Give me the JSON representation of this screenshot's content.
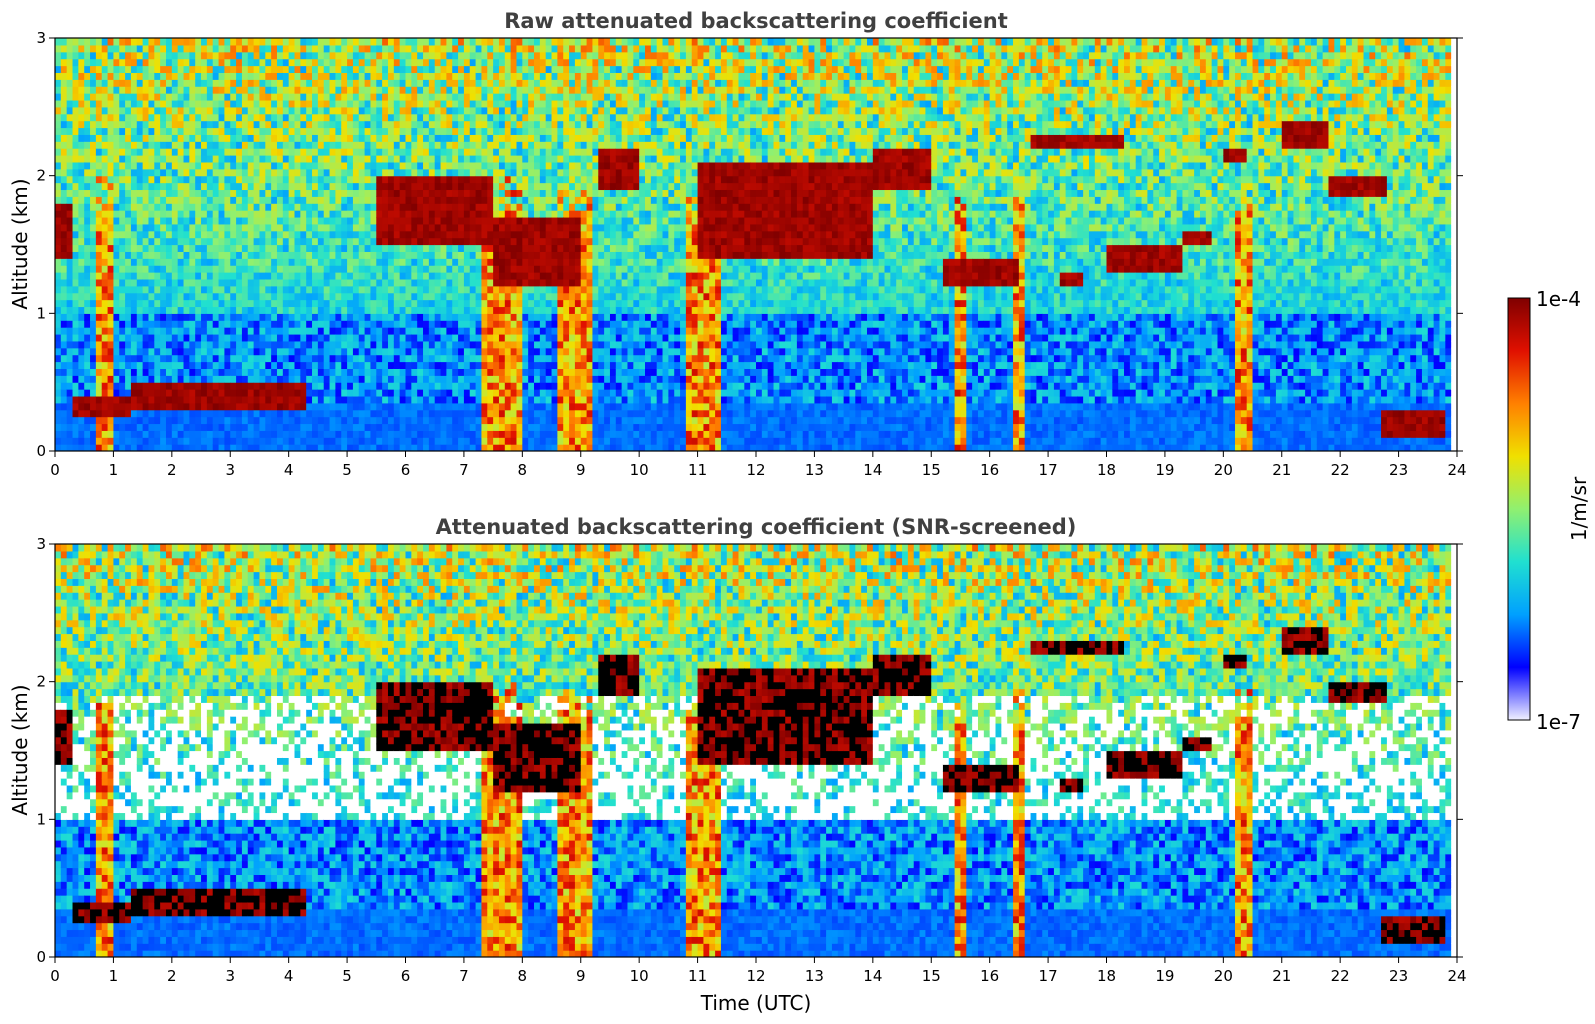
{
  "chart_data": {
    "type": "heatmap",
    "panels": [
      {
        "id": "raw",
        "title": "Raw attenuated backscattering coefficient",
        "xlabel": "",
        "ylabel": "Altitude (km)",
        "xlim": [
          0,
          24
        ],
        "ylim": [
          0,
          3
        ],
        "xticks": [
          "0",
          "1",
          "2",
          "3",
          "4",
          "5",
          "6",
          "7",
          "8",
          "9",
          "10",
          "11",
          "12",
          "13",
          "14",
          "15",
          "16",
          "17",
          "18",
          "19",
          "20",
          "21",
          "22",
          "23",
          "24"
        ],
        "yticks": [
          "0",
          "1",
          "2",
          "3"
        ],
        "screened": false
      },
      {
        "id": "snr",
        "title": "Attenuated backscattering coefficient (SNR-screened)",
        "xlabel": "Time (UTC)",
        "ylabel": "Altitude (km)",
        "xlim": [
          0,
          24
        ],
        "ylim": [
          0,
          3
        ],
        "xticks": [
          "0",
          "1",
          "2",
          "3",
          "4",
          "5",
          "6",
          "7",
          "8",
          "9",
          "10",
          "11",
          "12",
          "13",
          "14",
          "15",
          "16",
          "17",
          "18",
          "19",
          "20",
          "21",
          "22",
          "23",
          "24"
        ],
        "yticks": [
          "0",
          "1",
          "2",
          "3"
        ],
        "screened": true
      }
    ],
    "colorbar": {
      "label": "1/m/sr",
      "max_label": "1e-4",
      "min_label": "1e-7",
      "scale": "log",
      "range": [
        1e-07,
        0.0001
      ],
      "colormap": [
        "#f0f0ff",
        "#0000ff",
        "#00a0ff",
        "#20e0d0",
        "#90f070",
        "#f0e000",
        "#ff8000",
        "#e01000",
        "#800000"
      ]
    },
    "features": {
      "cloud_layers": [
        {
          "t": [
            0.0,
            0.3
          ],
          "alt": [
            1.4,
            1.8
          ]
        },
        {
          "t": [
            0.3,
            1.3
          ],
          "alt": [
            0.25,
            0.4
          ]
        },
        {
          "t": [
            1.3,
            4.3
          ],
          "alt": [
            0.3,
            0.5
          ]
        },
        {
          "t": [
            5.5,
            7.5
          ],
          "alt": [
            1.5,
            2.0
          ]
        },
        {
          "t": [
            7.5,
            9.0
          ],
          "alt": [
            1.2,
            1.7
          ]
        },
        {
          "t": [
            9.3,
            10.0
          ],
          "alt": [
            1.9,
            2.2
          ]
        },
        {
          "t": [
            11.0,
            14.0
          ],
          "alt": [
            1.4,
            2.1
          ]
        },
        {
          "t": [
            14.0,
            15.0
          ],
          "alt": [
            1.9,
            2.2
          ]
        },
        {
          "t": [
            15.2,
            16.5
          ],
          "alt": [
            1.2,
            1.4
          ]
        },
        {
          "t": [
            16.7,
            18.3
          ],
          "alt": [
            2.2,
            2.3
          ]
        },
        {
          "t": [
            17.2,
            17.6
          ],
          "alt": [
            1.2,
            1.3
          ]
        },
        {
          "t": [
            18.0,
            19.3
          ],
          "alt": [
            1.3,
            1.5
          ]
        },
        {
          "t": [
            19.3,
            19.8
          ],
          "alt": [
            1.5,
            1.6
          ]
        },
        {
          "t": [
            20.0,
            20.4
          ],
          "alt": [
            2.1,
            2.2
          ]
        },
        {
          "t": [
            21.0,
            21.8
          ],
          "alt": [
            2.2,
            2.4
          ]
        },
        {
          "t": [
            21.8,
            22.8
          ],
          "alt": [
            1.85,
            2.0
          ]
        },
        {
          "t": [
            22.7,
            23.8
          ],
          "alt": [
            0.1,
            0.3
          ]
        }
      ],
      "rain_columns": [
        {
          "t": [
            0.7,
            1.0
          ]
        },
        {
          "t": [
            7.3,
            8.0
          ]
        },
        {
          "t": [
            8.6,
            9.2
          ]
        },
        {
          "t": [
            10.8,
            11.4
          ]
        },
        {
          "t": [
            15.4,
            15.6
          ]
        },
        {
          "t": [
            16.4,
            16.6
          ]
        },
        {
          "t": [
            20.2,
            20.5
          ]
        }
      ]
    }
  }
}
